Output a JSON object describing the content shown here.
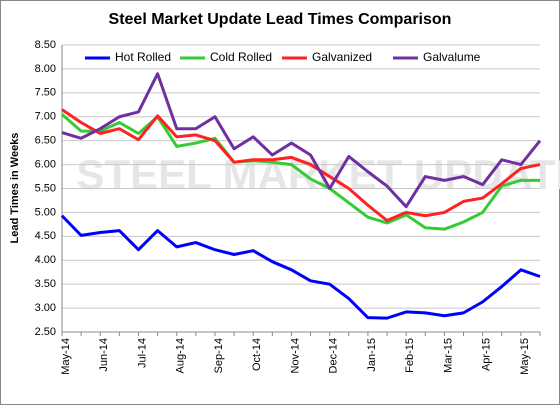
{
  "chart_data": {
    "type": "line",
    "title": "Steel Market Update Lead Times Comparison",
    "y_label": "Lead Times in Weeks",
    "watermark": "STEEL MARKET UPDATE",
    "categories": [
      "May-14",
      null,
      "Jun-14",
      null,
      "Jul-14",
      null,
      "Aug-14",
      null,
      "Sep-14",
      null,
      "Oct-14",
      null,
      "Nov-14",
      null,
      "Dec-14",
      null,
      "Jan-15",
      null,
      "Feb-15",
      null,
      "Mar-15",
      null,
      "Apr-15",
      null,
      "May-15",
      null
    ],
    "series": [
      {
        "name": "Hot Rolled",
        "color": "#0000ff",
        "values": [
          4.93,
          4.52,
          4.58,
          4.62,
          4.22,
          4.62,
          4.28,
          4.37,
          4.22,
          4.12,
          4.2,
          3.97,
          3.8,
          3.57,
          3.5,
          3.2,
          2.8,
          2.79,
          2.92,
          2.9,
          2.84,
          2.9,
          3.13,
          3.45,
          3.8,
          3.66
        ]
      },
      {
        "name": "Cold Rolled",
        "color": "#33cc33",
        "values": [
          7.05,
          6.7,
          6.7,
          6.88,
          6.65,
          7.0,
          6.38,
          6.45,
          6.55,
          6.05,
          6.08,
          6.05,
          6.0,
          5.7,
          5.5,
          5.2,
          4.9,
          4.78,
          4.95,
          4.68,
          4.65,
          4.8,
          5.0,
          5.55,
          5.67,
          5.67
        ]
      },
      {
        "name": "Galvanized",
        "color": "#ff2222",
        "values": [
          7.15,
          6.88,
          6.65,
          6.75,
          6.52,
          7.02,
          6.58,
          6.62,
          6.5,
          6.05,
          6.1,
          6.1,
          6.15,
          6.0,
          5.75,
          5.5,
          5.15,
          4.83,
          5.0,
          4.93,
          5.0,
          5.23,
          5.3,
          5.6,
          5.92,
          6.0
        ]
      },
      {
        "name": "Galvalume",
        "color": "#7030a0",
        "values": [
          6.67,
          6.55,
          6.75,
          7.0,
          7.1,
          7.9,
          6.75,
          6.75,
          7.0,
          6.33,
          6.58,
          6.2,
          6.45,
          6.2,
          5.5,
          6.17,
          5.85,
          5.55,
          5.12,
          5.75,
          5.67,
          5.75,
          5.58,
          6.1,
          6.0,
          6.5
        ]
      }
    ],
    "ylim": [
      2.5,
      8.5
    ],
    "yticks": [
      {
        "value": 2.5,
        "label": "2.50"
      },
      {
        "value": 3,
        "label": "3.00"
      },
      {
        "value": 3.5,
        "label": "3.50"
      },
      {
        "value": 4,
        "label": "4.00"
      },
      {
        "value": 4.5,
        "label": "4.50"
      },
      {
        "value": 5,
        "label": "5.00"
      },
      {
        "value": 5.5,
        "label": "5.50"
      },
      {
        "value": 6,
        "label": "6.00"
      },
      {
        "value": 6.5,
        "label": "6.50"
      },
      {
        "value": 7,
        "label": "7.00"
      },
      {
        "value": 7.5,
        "label": "7.50"
      },
      {
        "value": 8,
        "label": "8.00"
      },
      {
        "value": 8.5,
        "label": "8.50"
      }
    ],
    "grid": true,
    "legend": "top"
  }
}
